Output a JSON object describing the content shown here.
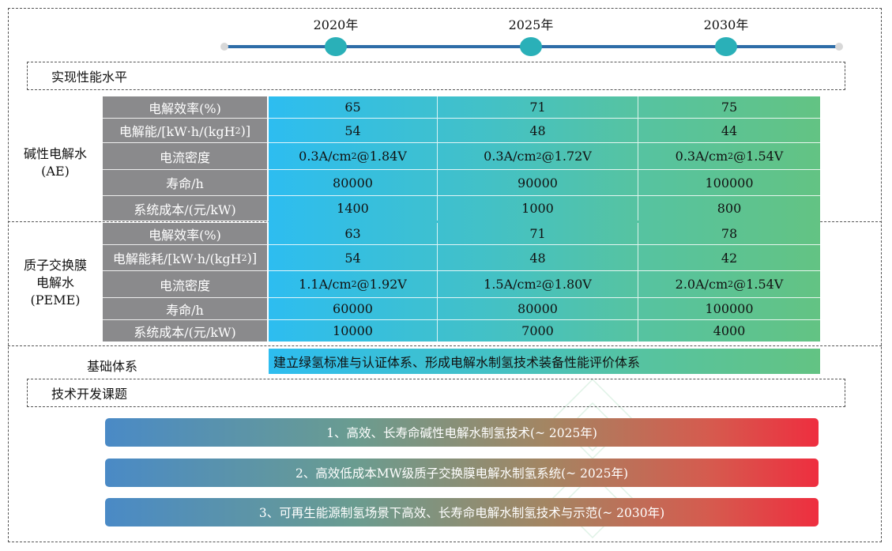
{
  "timeline": {
    "years": [
      "2020年",
      "2025年",
      "2030年"
    ],
    "line_color": "#2e6da8",
    "marker_color": "#2ab0b8"
  },
  "sections": {
    "performance_title": "实现性能水平",
    "basis_label": "基础体系",
    "basis_text": "建立绿氢标准与认证体系、形成电解水制氢技术装备性能评价体系",
    "topics_title": "技术开发课题"
  },
  "ae": {
    "label_line1": "碱性电解水",
    "label_line2": "(AE)",
    "rows": [
      {
        "label": "电解效率(%)",
        "values": [
          "65",
          "71",
          "75"
        ]
      },
      {
        "label_html": "电解能/[kW·h/(kgH<sub>2</sub>)]",
        "values": [
          "54",
          "48",
          "44"
        ]
      },
      {
        "label": "电流密度",
        "values_html": [
          "0.3A/cm<sup>2</sup>@1.84V",
          "0.3A/cm<sup>2</sup>@1.72V",
          "0.3A/cm<sup>2</sup>@1.54V"
        ]
      },
      {
        "label": "寿命/h",
        "values": [
          "80000",
          "90000",
          "100000"
        ]
      },
      {
        "label": "系统成本/(元/kW)",
        "values": [
          "1400",
          "1000",
          "800"
        ]
      }
    ]
  },
  "peme": {
    "label_line1": "质子交换膜",
    "label_line2": "电解水",
    "label_line3": "(PEME)",
    "rows": [
      {
        "label": "电解效率(%)",
        "values": [
          "63",
          "71",
          "78"
        ]
      },
      {
        "label_html": "电解能耗/[kW·h/(kgH<sub>2</sub>)]",
        "values": [
          "54",
          "48",
          "42"
        ]
      },
      {
        "label": "电流密度",
        "values_html": [
          "1.1A/cm<sup>2</sup>@1.92V",
          "1.5A/cm<sup>2</sup>@1.80V",
          "2.0A/cm<sup>2</sup>@1.54V"
        ]
      },
      {
        "label": "寿命/h",
        "values": [
          "60000",
          "80000",
          "100000"
        ]
      },
      {
        "label": "系统成本/(元/kW)",
        "values": [
          "10000",
          "7000",
          "4000"
        ]
      }
    ]
  },
  "topics": [
    "1、高效、长寿命碱性电解水制氢技术(~ 2025年)",
    "2、高效低成本MW级质子交换膜电解水制氢系统(~ 2025年)",
    "3、可再生能源制氢场景下高效、长寿命电解水制氢技术与示范(~ 2030年)"
  ],
  "colors": {
    "label_cell": "#8a8a8c",
    "value_gradient_start": "#2dbdf0",
    "value_gradient_end": "#63c383",
    "topic_gradient_start": "#4a8ac6",
    "topic_gradient_end": "#ee2e3f"
  }
}
